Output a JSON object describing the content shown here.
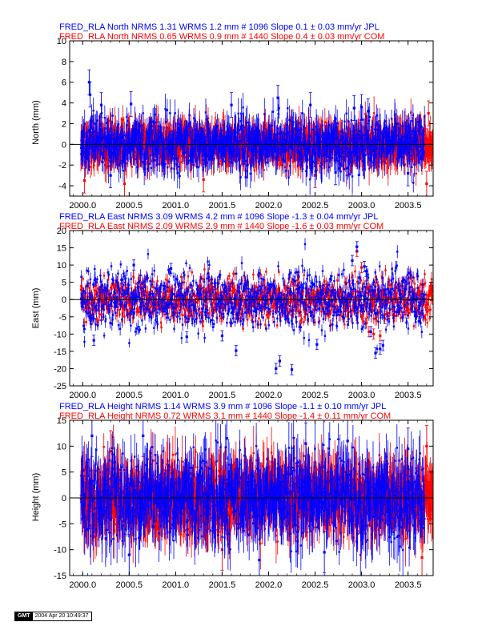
{
  "colors": {
    "series_1": "#0000ff",
    "series_2": "#ff0000",
    "axis": "#000000",
    "zero_line": "#000000"
  },
  "footer": {
    "logo": "GMT",
    "timestamp": "2004 Apr 20 10:49:37"
  },
  "chart_data": [
    {
      "type": "scatter",
      "subtype": "time-series with error bars",
      "headers": [
        "FRED_RLA North NRMS 1.31 WRMS  1.2 mm # 1096 Slope    0.1 ±  0.03 mm/yr JPL",
        "FRED_RLA North NRMS 0.65 WRMS  0.9 mm # 1440 Slope    0.4 ±  0.03 mm/yr COM"
      ],
      "ylabel": "North (mm)",
      "xlim": [
        1999.86,
        2003.77
      ],
      "ylim": [
        -5,
        10
      ],
      "xticks": [
        "2000.0",
        "2000.5",
        "2001.0",
        "2001.5",
        "2002.0",
        "2002.5",
        "2003.0",
        "2003.5"
      ],
      "yticks": [
        "-4",
        "-2",
        "0",
        "2",
        "4",
        "6",
        "8",
        "10"
      ],
      "zero_line": true,
      "series": [
        {
          "name": "JPL",
          "color": "#0000ff",
          "count": 1096,
          "x_range": [
            1999.98,
            2003.68
          ],
          "wrms": 1.2,
          "slope": 0.1,
          "slope_sigma": 0.03,
          "error": 1.2,
          "notable_points": [
            [
              2000.07,
              6.0
            ],
            [
              2000.08,
              4.8
            ],
            [
              2000.2,
              3.8
            ],
            [
              2000.52,
              3.9
            ],
            [
              2001.6,
              3.8
            ],
            [
              2002.1,
              4.5
            ],
            [
              2002.45,
              3.8
            ],
            [
              2002.92,
              3.5
            ],
            [
              2003.0,
              3.6
            ],
            [
              2003.07,
              3.2
            ],
            [
              2002.72,
              -2.7
            ],
            [
              2000.3,
              -3.0
            ],
            [
              2003.5,
              -2.8
            ]
          ]
        },
        {
          "name": "COM",
          "color": "#ff0000",
          "count": 1440,
          "x_range": [
            1999.98,
            2003.77
          ],
          "wrms": 0.9,
          "slope": 0.4,
          "slope_sigma": 0.03,
          "error": 1.2,
          "notable_points": [
            [
              2000.02,
              -3.5
            ],
            [
              2000.45,
              -3.8
            ],
            [
              2001.3,
              -3.4
            ],
            [
              2002.5,
              -3.0
            ],
            [
              2003.7,
              -3.8
            ],
            [
              2003.72,
              3.0
            ]
          ]
        }
      ]
    },
    {
      "type": "scatter",
      "subtype": "time-series with error bars",
      "headers": [
        "FRED_RLA East NRMS 3.09 WRMS  4.2 mm # 1096 Slope   -1.3 ±  0.04 mm/yr JPL",
        "FRED_RLA East NRMS 2.09 WRMS  2.9 mm # 1440 Slope   -1.6 ±  0.03 mm/yr COM"
      ],
      "ylabel": "East (mm)",
      "xlim": [
        1999.86,
        2003.77
      ],
      "ylim": [
        -25,
        20
      ],
      "xticks": [
        "2000.0",
        "2000.5",
        "2001.0",
        "2001.5",
        "2002.0",
        "2002.5",
        "2003.0",
        "2003.5"
      ],
      "yticks": [
        "-25",
        "-20",
        "-15",
        "-10",
        "-5",
        "0",
        "5",
        "10",
        "15",
        "20"
      ],
      "zero_line": true,
      "series": [
        {
          "name": "JPL",
          "color": "#0000ff",
          "count": 1096,
          "x_range": [
            1999.98,
            2003.68
          ],
          "wrms": 4.2,
          "slope": -1.3,
          "slope_sigma": 0.04,
          "error": 1.5,
          "notable_points": [
            [
              2000.12,
              -11.8
            ],
            [
              2000.55,
              10.0
            ],
            [
              2000.95,
              9.0
            ],
            [
              2001.12,
              -10.8
            ],
            [
              2001.5,
              -10.5
            ],
            [
              2001.65,
              -14.8
            ],
            [
              2002.08,
              -20.0
            ],
            [
              2002.12,
              -17.8
            ],
            [
              2002.25,
              -20.3
            ],
            [
              2002.52,
              -13.0
            ],
            [
              2002.9,
              11.3
            ],
            [
              2002.95,
              15.3
            ],
            [
              2003.03,
              9.6
            ],
            [
              2003.05,
              8.2
            ],
            [
              2003.1,
              -9.3
            ],
            [
              2003.15,
              -15.5
            ],
            [
              2003.2,
              -14.3
            ],
            [
              2003.23,
              -13.3
            ]
          ]
        },
        {
          "name": "COM",
          "color": "#ff0000",
          "count": 1440,
          "x_range": [
            1999.98,
            2003.77
          ],
          "wrms": 2.9,
          "slope": -1.6,
          "slope_sigma": 0.03,
          "error": 1.5,
          "notable_points": [
            [
              2002.95,
              14.0
            ],
            [
              2003.0,
              9.3
            ],
            [
              2002.85,
              -4.8
            ],
            [
              2003.05,
              -6.8
            ],
            [
              2003.08,
              -9.3
            ],
            [
              2003.13,
              -10.0
            ],
            [
              2003.2,
              -10.5
            ],
            [
              2003.25,
              -5.5
            ]
          ]
        }
      ]
    },
    {
      "type": "scatter",
      "subtype": "time-series with error bars",
      "headers": [
        "FRED_RLA Height NRMS 1.14 WRMS  3.9 mm # 1096 Slope   -1.1 ±  0.10 mm/yr JPL",
        "FRED_RLA Height NRMS 0.72 WRMS  3.1 mm # 1440 Slope   -1.4 ±  0.11 mm/yr COM"
      ],
      "ylabel": "Height (mm)",
      "xlim": [
        1999.86,
        2003.77
      ],
      "ylim": [
        -15,
        15
      ],
      "xticks": [
        "2000.0",
        "2000.5",
        "2001.0",
        "2001.5",
        "2002.0",
        "2002.5",
        "2003.0",
        "2003.5"
      ],
      "yticks": [
        "-15",
        "-10",
        "-5",
        "0",
        "5",
        "10",
        "15"
      ],
      "zero_line": true,
      "series": [
        {
          "name": "JPL",
          "color": "#0000ff",
          "count": 1096,
          "x_range": [
            1999.98,
            2003.68
          ],
          "wrms": 3.9,
          "slope": -1.1,
          "slope_sigma": 0.1,
          "error": 4.0,
          "notable_points": [
            [
              2000.1,
              12.0
            ],
            [
              2000.65,
              12.0
            ],
            [
              2001.55,
              11.5
            ],
            [
              2002.4,
              10.5
            ],
            [
              2002.85,
              11.0
            ],
            [
              2003.5,
              9.5
            ],
            [
              2000.5,
              -11.0
            ],
            [
              2001.9,
              -12.0
            ],
            [
              2002.6,
              -10.5
            ]
          ]
        },
        {
          "name": "COM",
          "color": "#ff0000",
          "count": 1440,
          "x_range": [
            1999.98,
            2003.77
          ],
          "wrms": 3.1,
          "slope": -1.4,
          "slope_sigma": 0.11,
          "error": 4.0,
          "notable_points": [
            [
              2003.65,
              -11.5
            ],
            [
              2003.7,
              10.0
            ],
            [
              2001.5,
              -10.0
            ],
            [
              2000.3,
              9.0
            ]
          ]
        }
      ]
    }
  ]
}
